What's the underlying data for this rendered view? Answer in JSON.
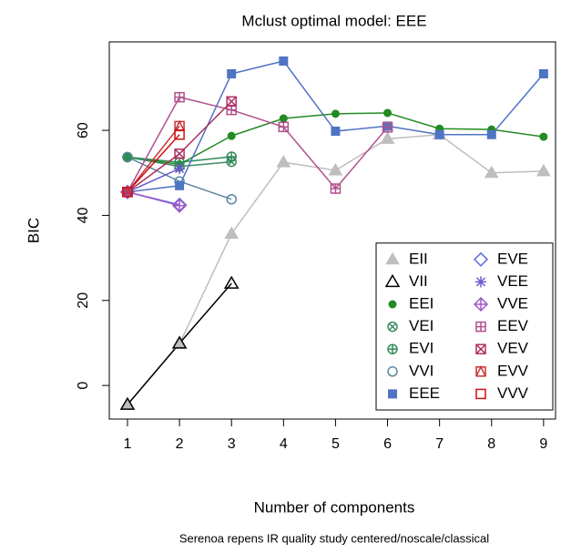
{
  "chart_data": {
    "type": "line",
    "title": "Mclust optimal model: EEE",
    "x_label": "Number of components",
    "y_label": "BIC",
    "subtitle": "Serenoa repens IR quality study  centered/noscale/classical",
    "x": [
      1,
      2,
      3,
      4,
      5,
      6,
      7,
      8,
      9
    ],
    "xlim": [
      0.65,
      9.23
    ],
    "xticks": [
      1,
      2,
      3,
      4,
      5,
      6,
      7,
      8,
      9
    ],
    "ylim": [
      -7.9,
      80.8
    ],
    "yticks": [
      0,
      20,
      40,
      60
    ],
    "legend": "bottomright",
    "series": [
      {
        "name": "EII",
        "color": "#bebebe",
        "marker": "triangle-filled",
        "values": [
          -4.5,
          9.8,
          35.7,
          52.5,
          50.6,
          58,
          59,
          50,
          50.4
        ]
      },
      {
        "name": "VII",
        "color": "#000000",
        "marker": "triangle",
        "values": [
          -4.5,
          9.9,
          24,
          null,
          null,
          null,
          null,
          null,
          null
        ]
      },
      {
        "name": "EEI",
        "color": "#228b22",
        "marker": "circle-filled",
        "values": [
          53.7,
          52,
          58.7,
          62.8,
          63.9,
          64.1,
          60.4,
          60.2,
          58.5
        ]
      },
      {
        "name": "VEI",
        "color": "#3c8c64",
        "marker": "circle-x",
        "values": [
          53.7,
          51.5,
          52.6,
          null,
          null,
          null,
          null,
          null,
          null
        ]
      },
      {
        "name": "EVI",
        "color": "#2e8b57",
        "marker": "circle-plus",
        "values": [
          53.7,
          52.5,
          53.8,
          null,
          null,
          null,
          null,
          null,
          null
        ]
      },
      {
        "name": "VVI",
        "color": "#5a87a0",
        "marker": "circle",
        "values": [
          53.7,
          48,
          43.8,
          null,
          null,
          null,
          null,
          null,
          null
        ]
      },
      {
        "name": "EEE",
        "color": "#4f74c4",
        "marker": "square-filled",
        "values": [
          45.5,
          47,
          73.3,
          76.3,
          59.8,
          61,
          59,
          59,
          73.3
        ]
      },
      {
        "name": "EVE",
        "color": "#5a6ee0",
        "marker": "diamond",
        "values": [
          45.5,
          42.5,
          null,
          null,
          null,
          null,
          null,
          null,
          null
        ]
      },
      {
        "name": "VEE",
        "color": "#6a5acd",
        "marker": "asterisk",
        "values": [
          45.5,
          51,
          null,
          null,
          null,
          null,
          null,
          null,
          null
        ]
      },
      {
        "name": "VVE",
        "color": "#9e59c8",
        "marker": "diamond-plus",
        "values": [
          45.5,
          42.3,
          null,
          null,
          null,
          null,
          null,
          null,
          null
        ]
      },
      {
        "name": "EEV",
        "color": "#b0508c",
        "marker": "square-plus",
        "values": [
          45.5,
          67.8,
          64.8,
          60.8,
          46.3,
          60.7,
          null,
          null,
          null
        ]
      },
      {
        "name": "VEV",
        "color": "#b03060",
        "marker": "square-x",
        "values": [
          45.5,
          54.5,
          66.8,
          null,
          null,
          null,
          null,
          null,
          null
        ]
      },
      {
        "name": "EVV",
        "color": "#c83232",
        "marker": "square-triangle",
        "values": [
          45.5,
          61,
          null,
          null,
          null,
          null,
          null,
          null,
          null
        ]
      },
      {
        "name": "VVV",
        "color": "#d01010",
        "marker": "square",
        "values": [
          45.5,
          59,
          null,
          null,
          null,
          null,
          null,
          null,
          null
        ]
      }
    ]
  }
}
